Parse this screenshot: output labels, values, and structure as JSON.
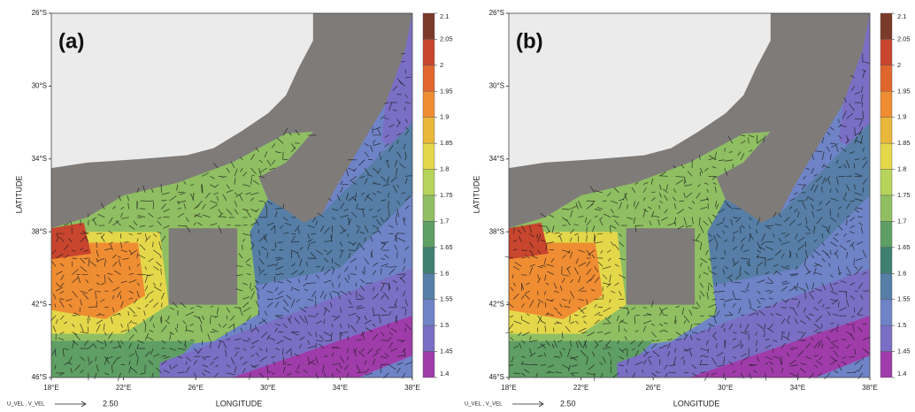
{
  "panels": [
    {
      "label": "(a)",
      "y_axis_label": "LATITUDE",
      "x_axis_label": "LONGITUDE",
      "lat_ticks": [
        {
          "value": -26,
          "label": "26°S"
        },
        {
          "value": -30,
          "label": "30°S"
        },
        {
          "value": -34,
          "label": "34°S"
        },
        {
          "value": -38,
          "label": "38°S"
        },
        {
          "value": -42,
          "label": "42°S"
        },
        {
          "value": -46,
          "label": "46°S"
        }
      ],
      "lon_ticks": [
        {
          "value": 18,
          "label": "18°E"
        },
        {
          "value": 22,
          "label": "22°E"
        },
        {
          "value": 26,
          "label": "26°E"
        },
        {
          "value": 30,
          "label": "30°E"
        },
        {
          "value": 34,
          "label": "34°E"
        },
        {
          "value": 38,
          "label": "38°E"
        }
      ],
      "colorbar": {
        "ticks": [
          2.1,
          2.05,
          2,
          1.95,
          1.9,
          1.85,
          1.8,
          1.75,
          1.7,
          1.65,
          1.6,
          1.55,
          1.5,
          1.45,
          1.4
        ]
      },
      "vector_key": {
        "label": "U_VEL , V_VEL",
        "value": "2.50"
      }
    },
    {
      "label": "(b)",
      "y_axis_label": "LATITUDE",
      "x_axis_label": "LONGITUDE",
      "lat_ticks": [
        {
          "value": -26,
          "label": "26°S"
        },
        {
          "value": -30,
          "label": "30°S"
        },
        {
          "value": -34,
          "label": "34°S"
        },
        {
          "value": -38,
          "label": "38°S"
        },
        {
          "value": -42,
          "label": "42°S"
        },
        {
          "value": -46,
          "label": "46°S"
        }
      ],
      "lon_ticks": [
        {
          "value": 18,
          "label": "18°E"
        },
        {
          "value": 22,
          "label": "22°E"
        },
        {
          "value": 26,
          "label": "26°E"
        },
        {
          "value": 30,
          "label": "30°E"
        },
        {
          "value": 34,
          "label": "34°E"
        },
        {
          "value": 38,
          "label": "38°E"
        }
      ],
      "colorbar": {
        "ticks": [
          2.1,
          2.05,
          2,
          1.95,
          1.9,
          1.85,
          1.8,
          1.75,
          1.7,
          1.65,
          1.6,
          1.55,
          1.5,
          1.45,
          1.4
        ]
      },
      "vector_key": {
        "label": "U_VEL , V_VEL",
        "value": "2.50"
      }
    }
  ],
  "colorbar_colors": [
    "#7a3a2a",
    "#c8452e",
    "#e0662e",
    "#ef8d33",
    "#e9b73a",
    "#e4d84a",
    "#b7d45a",
    "#8fbf62",
    "#5f9e64",
    "#3f8072",
    "#567ea6",
    "#6f83c7",
    "#7a6fc4",
    "#a03caa"
  ]
}
